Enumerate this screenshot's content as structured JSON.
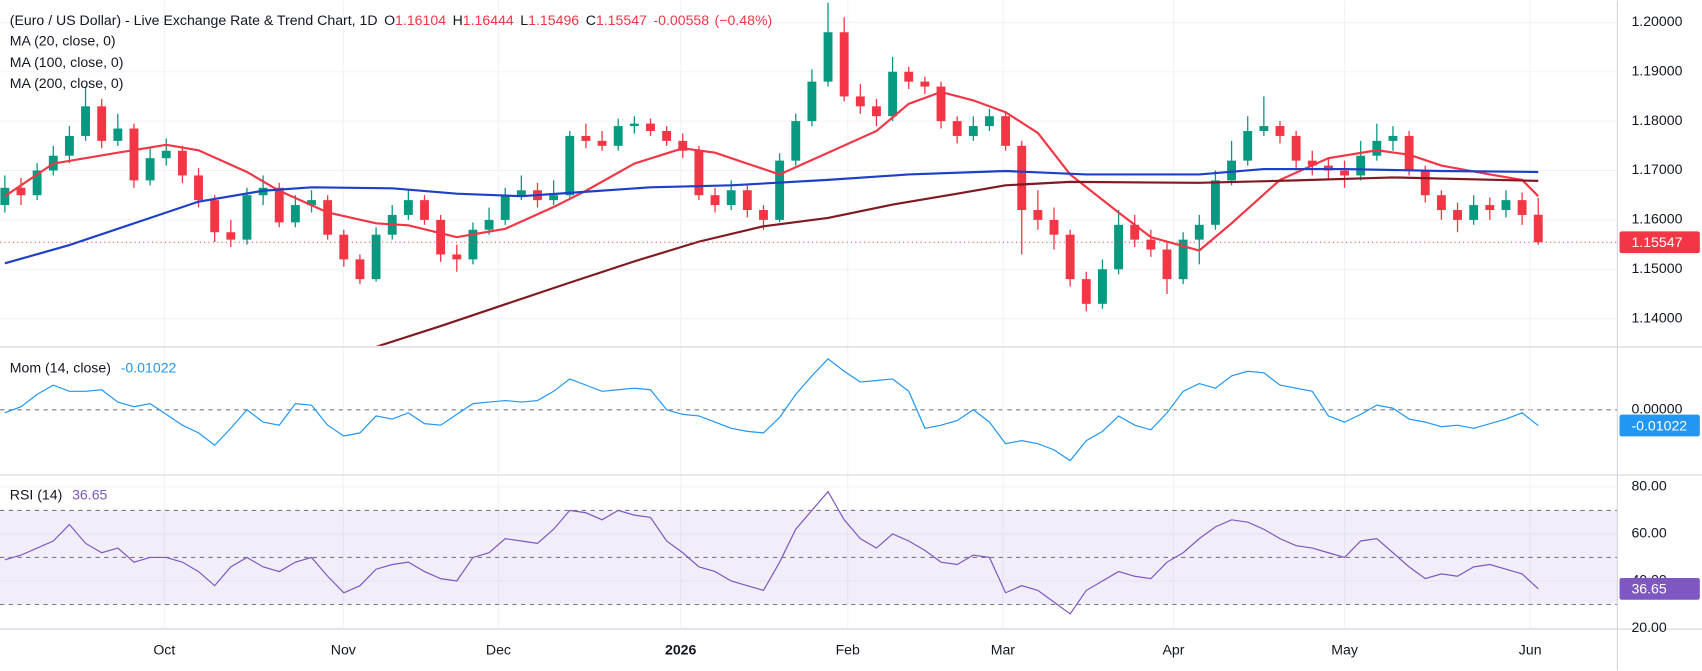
{
  "chart_data": [
    {
      "type": "candlestick",
      "title": "(Euro / US Dollar) - Live Exchange Rate & Trend Chart, 1D",
      "ohlc_labels": [
        "O",
        "H",
        "L",
        "C"
      ],
      "change": -0.00558,
      "change_pct": {
        "value": -0.48,
        "label": "(−0.48%)"
      },
      "up_color": "#089981",
      "down_color": "#f23645",
      "candles": [
        [
          1.163,
          1.169,
          1.1615,
          1.1665
        ],
        [
          1.1665,
          1.1685,
          1.163,
          1.165
        ],
        [
          1.165,
          1.1715,
          1.164,
          1.17
        ],
        [
          1.17,
          1.175,
          1.169,
          1.173
        ],
        [
          1.173,
          1.179,
          1.1715,
          1.177
        ],
        [
          1.177,
          1.187,
          1.176,
          1.183
        ],
        [
          1.183,
          1.1845,
          1.1745,
          1.176
        ],
        [
          1.176,
          1.1815,
          1.175,
          1.1785
        ],
        [
          1.1785,
          1.1795,
          1.1665,
          1.168
        ],
        [
          1.168,
          1.1745,
          1.167,
          1.1725
        ],
        [
          1.1725,
          1.1765,
          1.171,
          1.174
        ],
        [
          1.174,
          1.175,
          1.1675,
          1.169
        ],
        [
          1.169,
          1.1705,
          1.1625,
          1.164
        ],
        [
          1.164,
          1.165,
          1.1555,
          1.1575
        ],
        [
          1.1575,
          1.16,
          1.1545,
          1.156
        ],
        [
          1.156,
          1.1665,
          1.155,
          1.165
        ],
        [
          1.165,
          1.169,
          1.163,
          1.1665
        ],
        [
          1.1665,
          1.1675,
          1.1585,
          1.1595
        ],
        [
          1.1595,
          1.165,
          1.1585,
          1.163
        ],
        [
          1.163,
          1.166,
          1.1615,
          1.164
        ],
        [
          1.164,
          1.165,
          1.156,
          1.157
        ],
        [
          1.157,
          1.158,
          1.1505,
          1.152
        ],
        [
          1.152,
          1.153,
          1.147,
          1.148
        ],
        [
          1.148,
          1.1585,
          1.1475,
          1.157
        ],
        [
          1.157,
          1.163,
          1.156,
          1.161
        ],
        [
          1.161,
          1.166,
          1.16,
          1.164
        ],
        [
          1.164,
          1.165,
          1.159,
          1.16
        ],
        [
          1.16,
          1.161,
          1.1515,
          1.153
        ],
        [
          1.153,
          1.155,
          1.1495,
          1.152
        ],
        [
          1.152,
          1.1595,
          1.151,
          1.158
        ],
        [
          1.158,
          1.1625,
          1.157,
          1.16
        ],
        [
          1.16,
          1.1665,
          1.159,
          1.165
        ],
        [
          1.165,
          1.169,
          1.164,
          1.166
        ],
        [
          1.166,
          1.1675,
          1.1625,
          1.164
        ],
        [
          1.164,
          1.168,
          1.163,
          1.165
        ],
        [
          1.165,
          1.178,
          1.1645,
          1.177
        ],
        [
          1.177,
          1.1795,
          1.1745,
          1.176
        ],
        [
          1.176,
          1.178,
          1.174,
          1.175
        ],
        [
          1.175,
          1.1805,
          1.174,
          1.179
        ],
        [
          1.179,
          1.181,
          1.1775,
          1.1795
        ],
        [
          1.1795,
          1.1805,
          1.177,
          1.178
        ],
        [
          1.178,
          1.179,
          1.175,
          1.176
        ],
        [
          1.176,
          1.1775,
          1.1725,
          1.174
        ],
        [
          1.174,
          1.175,
          1.164,
          1.165
        ],
        [
          1.165,
          1.1665,
          1.1615,
          1.163
        ],
        [
          1.163,
          1.168,
          1.162,
          1.166
        ],
        [
          1.166,
          1.167,
          1.1605,
          1.162
        ],
        [
          1.162,
          1.163,
          1.158,
          1.16
        ],
        [
          1.16,
          1.1735,
          1.1595,
          1.172
        ],
        [
          1.172,
          1.1815,
          1.171,
          1.18
        ],
        [
          1.18,
          1.1905,
          1.179,
          1.188
        ],
        [
          1.188,
          1.204,
          1.187,
          1.198
        ],
        [
          1.198,
          1.201,
          1.184,
          1.185
        ],
        [
          1.185,
          1.1875,
          1.1815,
          1.183
        ],
        [
          1.183,
          1.1845,
          1.179,
          1.181
        ],
        [
          1.181,
          1.193,
          1.18,
          1.19
        ],
        [
          1.19,
          1.191,
          1.1865,
          1.188
        ],
        [
          1.188,
          1.189,
          1.1855,
          1.187
        ],
        [
          1.187,
          1.188,
          1.1785,
          1.18
        ],
        [
          1.18,
          1.181,
          1.1755,
          1.177
        ],
        [
          1.177,
          1.181,
          1.176,
          1.179
        ],
        [
          1.179,
          1.1825,
          1.178,
          1.181
        ],
        [
          1.181,
          1.182,
          1.174,
          1.175
        ],
        [
          1.175,
          1.176,
          1.153,
          1.162
        ],
        [
          1.162,
          1.166,
          1.158,
          1.16
        ],
        [
          1.16,
          1.1625,
          1.154,
          1.157
        ],
        [
          1.157,
          1.158,
          1.1465,
          1.148
        ],
        [
          1.148,
          1.1495,
          1.1415,
          1.143
        ],
        [
          1.143,
          1.152,
          1.142,
          1.15
        ],
        [
          1.15,
          1.162,
          1.149,
          1.159
        ],
        [
          1.159,
          1.161,
          1.1545,
          1.156
        ],
        [
          1.156,
          1.158,
          1.1525,
          1.154
        ],
        [
          1.154,
          1.1555,
          1.145,
          1.148
        ],
        [
          1.148,
          1.1575,
          1.147,
          1.156
        ],
        [
          1.156,
          1.161,
          1.151,
          1.159
        ],
        [
          1.159,
          1.17,
          1.158,
          1.168
        ],
        [
          1.168,
          1.176,
          1.167,
          1.172
        ],
        [
          1.172,
          1.181,
          1.171,
          1.178
        ],
        [
          1.178,
          1.185,
          1.177,
          1.179
        ],
        [
          1.179,
          1.18,
          1.1755,
          1.177
        ],
        [
          1.177,
          1.178,
          1.17,
          1.172
        ],
        [
          1.172,
          1.174,
          1.169,
          1.171
        ],
        [
          1.171,
          1.1725,
          1.168,
          1.17
        ],
        [
          1.17,
          1.172,
          1.1665,
          1.169
        ],
        [
          1.169,
          1.176,
          1.168,
          1.173
        ],
        [
          1.173,
          1.1795,
          1.172,
          1.176
        ],
        [
          1.176,
          1.179,
          1.174,
          1.177
        ],
        [
          1.177,
          1.178,
          1.169,
          1.17
        ],
        [
          1.17,
          1.171,
          1.1635,
          1.165
        ],
        [
          1.165,
          1.166,
          1.16,
          1.162
        ],
        [
          1.162,
          1.1635,
          1.1575,
          1.16
        ],
        [
          1.16,
          1.165,
          1.159,
          1.163
        ],
        [
          1.163,
          1.1645,
          1.16,
          1.162
        ],
        [
          1.162,
          1.166,
          1.1605,
          1.164
        ],
        [
          1.164,
          1.1655,
          1.159,
          1.161
        ],
        [
          1.16104,
          1.16444,
          1.15496,
          1.15547
        ]
      ],
      "series": [
        {
          "name": "MA (20, close, 0)",
          "color": "#f23645",
          "x": [
            0,
            3,
            7,
            10,
            12,
            15,
            17,
            20,
            23,
            25,
            28,
            31,
            34,
            36,
            39,
            42,
            44,
            46,
            48,
            51,
            54,
            56,
            58,
            60,
            62,
            64,
            66,
            69,
            71,
            74,
            76,
            79,
            82,
            85,
            87,
            89,
            92,
            94,
            95
          ],
          "values": [
            1.1648,
            1.1714,
            1.1736,
            1.1752,
            1.1741,
            1.1697,
            1.1659,
            1.1615,
            1.1593,
            1.1589,
            1.1565,
            1.1582,
            1.1626,
            1.1659,
            1.1714,
            1.1745,
            1.1736,
            1.1714,
            1.1692,
            1.1736,
            1.178,
            1.1835,
            1.1859,
            1.1842,
            1.1818,
            1.1776,
            1.1692,
            1.1615,
            1.1565,
            1.1538,
            1.1593,
            1.1681,
            1.1725,
            1.1741,
            1.1732,
            1.171,
            1.1692,
            1.1681,
            1.1648
          ]
        },
        {
          "name": "MA (100, close, 0)",
          "color": "#1e3fc8",
          "x": [
            0,
            4,
            8,
            12,
            16,
            19,
            24,
            28,
            32,
            36,
            40,
            45,
            51,
            56,
            62,
            67,
            74,
            78,
            83,
            89,
            95
          ],
          "values": [
            1.1512,
            1.1549,
            1.1593,
            1.1637,
            1.1659,
            1.1666,
            1.1664,
            1.1653,
            1.1648,
            1.1657,
            1.1666,
            1.167,
            1.1681,
            1.1692,
            1.1699,
            1.1692,
            1.1692,
            1.1703,
            1.1703,
            1.1699,
            1.1697
          ]
        },
        {
          "name": "MA (200, close, 0)",
          "color": "#801922",
          "x": [
            23,
            27,
            31,
            35,
            39,
            43,
            47,
            51,
            55,
            59,
            62,
            66,
            74,
            80,
            86,
            95
          ],
          "values": [
            1.1343,
            1.1385,
            1.1429,
            1.1473,
            1.1516,
            1.1556,
            1.1587,
            1.1604,
            1.1631,
            1.1653,
            1.167,
            1.1677,
            1.1675,
            1.168,
            1.1686,
            1.1679
          ]
        }
      ],
      "xlim": [
        -0.3,
        99.9
      ],
      "ylim": [
        1.1345,
        1.2044
      ],
      "yticks": [
        {
          "value": 1.2,
          "label": "1.20000"
        },
        {
          "value": 1.19,
          "label": "1.19000"
        },
        {
          "value": 1.18,
          "label": "1.18000"
        },
        {
          "value": 1.17,
          "label": "1.17000"
        },
        {
          "value": 1.16,
          "label": "1.16000"
        },
        {
          "value": 1.15,
          "label": "1.15000"
        },
        {
          "value": 1.14,
          "label": "1.14000"
        }
      ],
      "grid": true
    },
    {
      "type": "line",
      "series": [
        {
          "name": "Mom (14, close)",
          "color": "#2196f3",
          "values": [
            -0.002,
            0.002,
            0.01,
            0.016,
            0.012,
            0.012,
            0.013,
            0.005,
            0.002,
            0.004,
            -0.003,
            -0.01,
            -0.015,
            -0.023,
            -0.012,
            0.0,
            -0.008,
            -0.01,
            0.004,
            0.003,
            -0.01,
            -0.017,
            -0.015,
            -0.004,
            -0.006,
            -0.002,
            -0.009,
            -0.01,
            -0.003,
            0.004,
            0.005,
            0.006,
            0.005,
            0.006,
            0.012,
            0.02,
            0.016,
            0.012,
            0.013,
            0.014,
            0.013,
            0.0,
            -0.003,
            -0.004,
            -0.008,
            -0.012,
            -0.014,
            -0.015,
            -0.005,
            0.01,
            0.022,
            0.033,
            0.025,
            0.018,
            0.019,
            0.02,
            0.012,
            -0.012,
            -0.01,
            -0.007,
            0.0,
            -0.008,
            -0.022,
            -0.02,
            -0.022,
            -0.026,
            -0.033,
            -0.02,
            -0.014,
            -0.004,
            -0.01,
            -0.013,
            -0.002,
            0.012,
            0.017,
            0.014,
            0.022,
            0.025,
            0.024,
            0.016,
            0.014,
            0.012,
            -0.004,
            -0.008,
            -0.003,
            0.003,
            0.001,
            -0.006,
            -0.008,
            -0.011,
            -0.01,
            -0.012,
            -0.009,
            -0.006,
            -0.002,
            -0.01022
          ]
        }
      ],
      "xlim": [
        -0.3,
        99.9
      ],
      "ylim": [
        -0.0416,
        0.0401
      ],
      "yticks": [
        {
          "value": 0,
          "label": "0.00000"
        }
      ],
      "grid": "dashed"
    },
    {
      "type": "line",
      "series": [
        {
          "name": "RSI (14)",
          "color": "#7e57c2",
          "values": [
            49,
            51,
            54,
            57,
            64,
            56,
            52,
            54,
            48,
            50,
            50,
            48,
            44,
            38,
            46,
            50,
            46,
            44,
            48,
            50,
            42,
            35,
            38,
            45,
            47,
            48,
            44,
            41,
            40,
            50,
            52,
            58,
            57,
            56,
            62,
            70,
            69,
            66,
            70,
            68,
            67,
            57,
            52,
            46,
            44,
            40,
            38,
            36,
            48,
            62,
            70,
            78,
            66,
            58,
            54,
            60,
            57,
            53,
            48,
            47,
            51,
            50,
            35,
            38,
            36,
            31,
            26,
            36,
            40,
            44,
            42,
            41,
            48,
            52,
            58,
            63,
            66,
            65,
            62,
            58,
            55,
            54,
            52,
            50,
            57,
            58,
            52,
            46,
            41,
            43,
            42,
            46,
            47,
            45,
            43,
            36.65
          ]
        }
      ],
      "levels": [
        70,
        50,
        30
      ],
      "band": [
        30,
        70
      ],
      "xlim": [
        -0.3,
        99.9
      ],
      "ylim": [
        20,
        84.6
      ],
      "yticks": [
        {
          "value": 80,
          "label": "80.00"
        },
        {
          "value": 60,
          "label": "60.00"
        },
        {
          "value": 40,
          "label": "40.00"
        },
        {
          "value": 20,
          "label": "20.00"
        }
      ],
      "xticks": [
        {
          "value": 9.88,
          "label": "Oct"
        },
        {
          "value": 20.97,
          "label": "Nov"
        },
        {
          "value": 30.58,
          "label": "Dec"
        },
        {
          "value": 41.87,
          "label": "2026",
          "bold": true
        },
        {
          "value": 52.22,
          "label": "Feb"
        },
        {
          "value": 61.83,
          "label": "Mar"
        },
        {
          "value": 72.4,
          "label": "Apr"
        },
        {
          "value": 83.0,
          "label": "May"
        },
        {
          "value": 94.5,
          "label": "Jun"
        }
      ],
      "grid": true
    }
  ]
}
